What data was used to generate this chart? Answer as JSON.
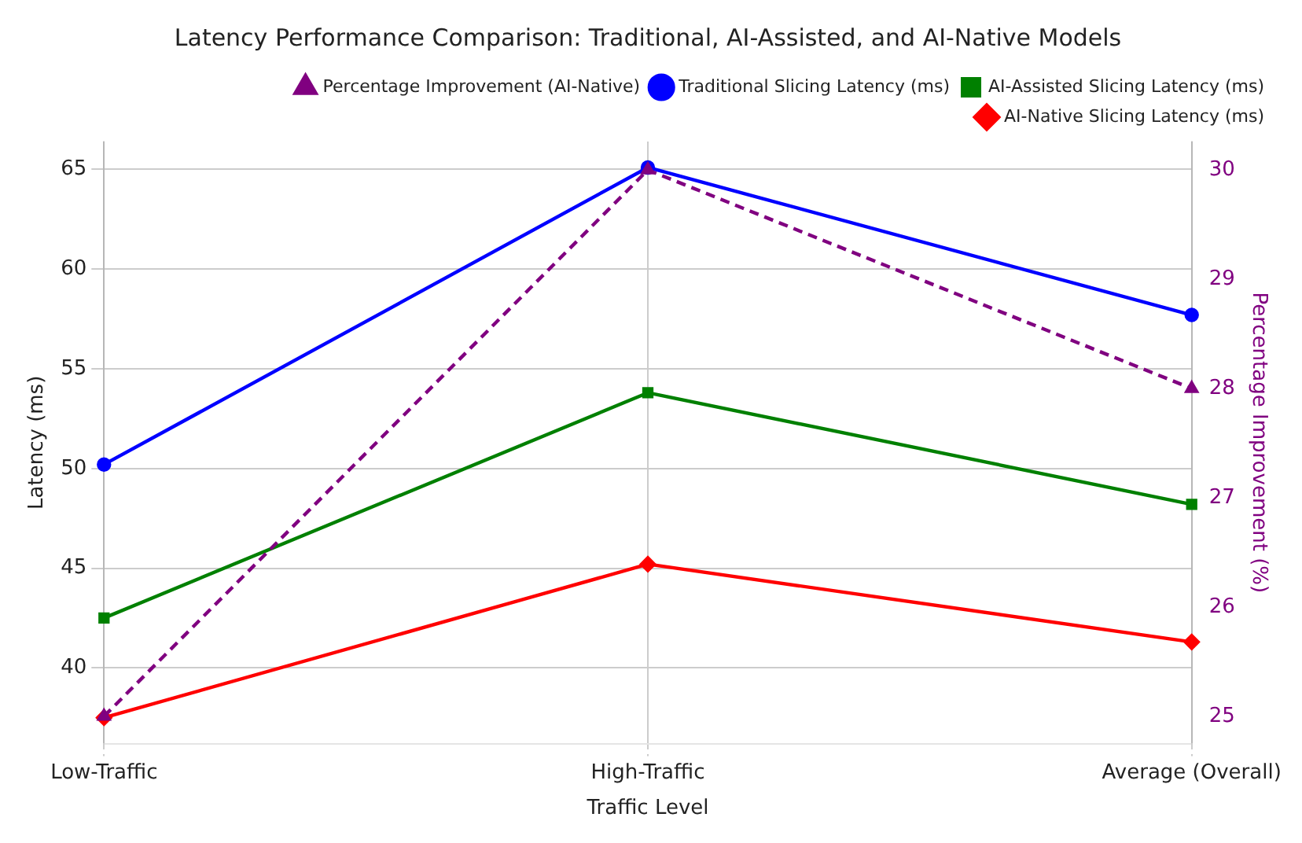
{
  "chart_data": {
    "type": "line",
    "title": "Latency Performance Comparison: Traditional, AI-Assisted, and AI-Native Models",
    "xlabel": "Traffic Level",
    "ylabel": "Latency (ms)",
    "y2label": "Percentage Improvement (%)",
    "categories": [
      "Low-Traffic",
      "High-Traffic",
      "Average (Overall)"
    ],
    "series": [
      {
        "name": "Traditional Slicing Latency (ms)",
        "color": "#0000ff",
        "values": [
          50.2,
          65.1,
          57.7
        ],
        "marker": "circle",
        "line_style": "solid"
      },
      {
        "name": "AI-Assisted Slicing Latency (ms)",
        "color": "#008000",
        "values": [
          42.5,
          53.8,
          48.2
        ],
        "marker": "square",
        "line_style": "solid"
      },
      {
        "name": "AI-Native Slicing Latency (ms)",
        "color": "#ff0000",
        "values": [
          37.5,
          45.2,
          41.3
        ],
        "marker": "diamond",
        "line_style": "solid"
      },
      {
        "name": "Percentage Improvement (AI-Native)",
        "color": "#800080",
        "values": [
          25,
          30,
          28
        ],
        "marker": "triangle",
        "line_style": "dashed",
        "axis": "y2"
      }
    ],
    "ylim": [
      36.2,
      66.4
    ],
    "yticks": [
      40,
      45,
      50,
      55,
      60,
      65
    ],
    "y2lim": [
      24.75,
      30.26
    ],
    "y2ticks": [
      25,
      26,
      27,
      28,
      29,
      30
    ],
    "grid": true,
    "legend": "top right"
  }
}
